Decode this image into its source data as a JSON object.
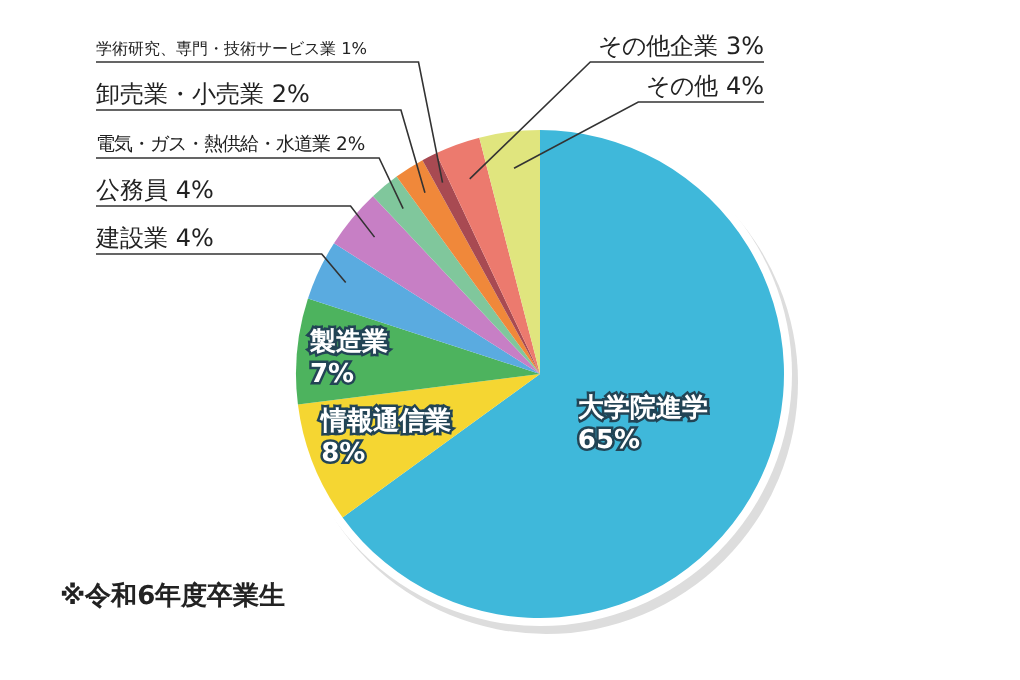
{
  "chart_data": {
    "type": "pie",
    "categories": [
      "大学院進学",
      "情報通信業",
      "製造業",
      "建設業",
      "公務員",
      "電気・ガス・熱供給・水道業",
      "卸売業・小売業",
      "学術研究、専門・技術サービス業",
      "その他企業",
      "その他"
    ],
    "values": [
      65,
      8,
      7,
      4,
      4,
      2,
      2,
      1,
      3,
      4
    ],
    "value_labels": [
      "65%",
      "8%",
      "7%",
      "4%",
      "4%",
      "2%",
      "2%",
      "1%",
      "3%",
      "4%"
    ],
    "colors": [
      "#3fb8da",
      "#f5d632",
      "#4db35e",
      "#5aabe0",
      "#c77fc5",
      "#80c79c",
      "#f0883a",
      "#a84a52",
      "#ec7a6e",
      "#e0e57e"
    ],
    "annotations": [
      "※令和6年度卒業生"
    ]
  }
}
